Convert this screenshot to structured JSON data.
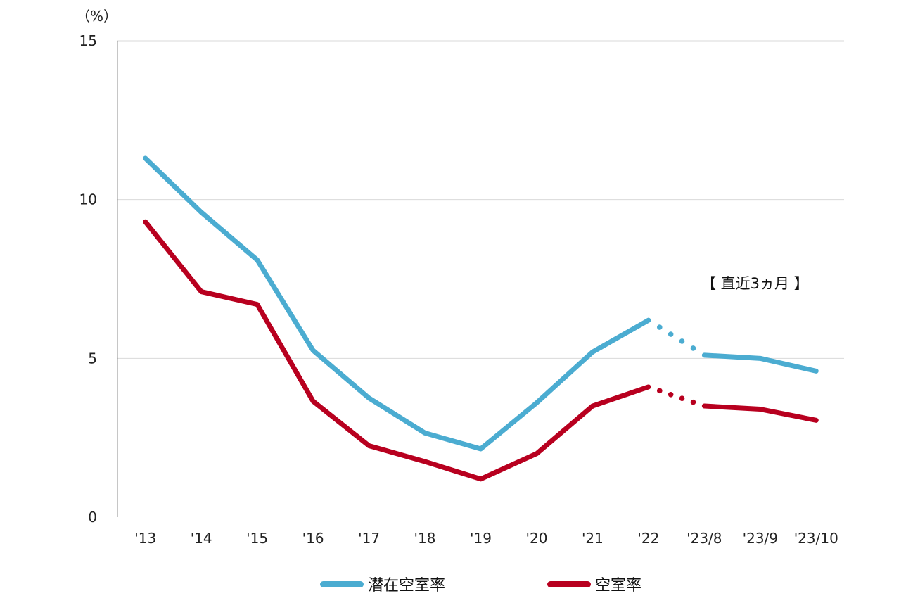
{
  "chart_data": {
    "type": "line",
    "y_unit_label": "（%）",
    "ylim": [
      0,
      15
    ],
    "yticks": [
      0,
      5,
      10,
      15
    ],
    "categories": [
      "'13",
      "'14",
      "'15",
      "'16",
      "'17",
      "'18",
      "'19",
      "'20",
      "'21",
      "'22",
      "'23/8",
      "'23/9",
      "'23/10"
    ],
    "series": [
      {
        "name": "潜在空室率",
        "color": "#4bacd1",
        "values": [
          11.3,
          9.6,
          8.1,
          5.25,
          3.75,
          2.65,
          2.15,
          3.6,
          5.2,
          6.2,
          5.1,
          5.0,
          4.6
        ]
      },
      {
        "name": "空室率",
        "color": "#b8001f",
        "values": [
          9.3,
          7.1,
          6.7,
          3.65,
          2.25,
          1.75,
          1.2,
          2.0,
          3.5,
          4.1,
          3.5,
          3.4,
          3.05
        ]
      }
    ],
    "dotted_segment_between": [
      "'22",
      "'23/8"
    ],
    "annotation": "【 直近3ヵ月 】",
    "grid": true,
    "legend_position": "bottom"
  }
}
